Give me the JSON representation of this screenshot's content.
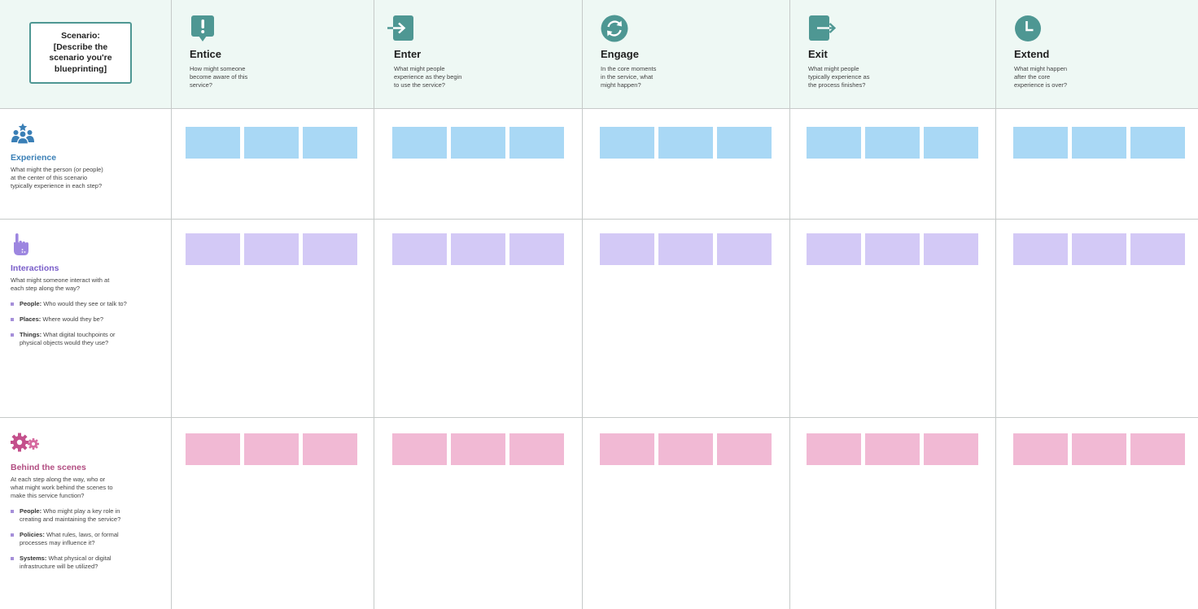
{
  "scenario": {
    "lines": [
      "Scenario:",
      "[Describe the",
      "scenario you're",
      "blueprinting]"
    ]
  },
  "colors": {
    "header_bg": "#eef8f4",
    "icon_teal": "#4e9793",
    "experience_title": "#3a7fb6",
    "interactions_title": "#7a5ec9",
    "behind_title": "#b24e82",
    "sticky_blue": "#a9d8f5",
    "sticky_purple": "#d3c9f6",
    "sticky_pink": "#f1b9d4",
    "grid_line": "#c6cac9"
  },
  "phases": [
    {
      "icon": "exclamation-bubble-icon",
      "title": "Entice",
      "desc": [
        "How might someone",
        "become aware of this",
        "service?"
      ]
    },
    {
      "icon": "enter-arrow-icon",
      "title": "Enter",
      "desc": [
        "What might people",
        "experience as they begin",
        "to use the service?"
      ]
    },
    {
      "icon": "refresh-cycle-icon",
      "title": "Engage",
      "desc": [
        "In the core moments",
        "in the service, what",
        "might happen?"
      ]
    },
    {
      "icon": "exit-arrow-icon",
      "title": "Exit",
      "desc": [
        "What might people",
        "typically experience as",
        "the process finishes?"
      ]
    },
    {
      "icon": "clock-icon",
      "title": "Extend",
      "desc": [
        "What might happen",
        "after the core",
        "experience is over?"
      ]
    }
  ],
  "rows": [
    {
      "icon": "people-group-icon",
      "title": "Experience",
      "desc": [
        "What might the person (or people)",
        "at the center of this scenario",
        "typically experience in each step?"
      ],
      "bullets": []
    },
    {
      "icon": "pointing-hand-icon",
      "title": "Interactions",
      "desc": [
        "What might someone interact with at",
        "each step along the way?"
      ],
      "bullets": [
        {
          "label": "People:",
          "text": "Who would they see or talk to?"
        },
        {
          "label": "Places:",
          "text": "Where would they be?"
        },
        {
          "label": "Things:",
          "text": "What digital touchpoints or physical objects would they use?"
        }
      ]
    },
    {
      "icon": "gears-icon",
      "title": "Behind the scenes",
      "desc": [
        "At each step along the way, who or",
        "what might work behind the scenes to",
        "make this service function?"
      ],
      "bullets": [
        {
          "label": "People:",
          "text": "Who might play a key role in creating and maintaining the service?"
        },
        {
          "label": "Policies:",
          "text": "What rules, laws, or formal processes may influence it?"
        },
        {
          "label": "Systems:",
          "text": "What physical or digital infrastructure will be utilized?"
        }
      ]
    }
  ]
}
